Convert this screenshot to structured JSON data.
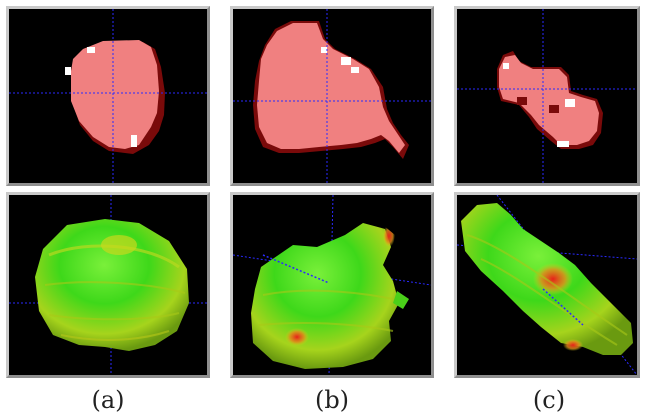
{
  "captions": [
    "(a)",
    "(b)",
    "(c)"
  ],
  "colors": {
    "background": "#000000",
    "slice_fill": "#f08080",
    "slice_edge": "#7a0a0a",
    "crosshair": "#2a2aff",
    "surface_green": "#3fdc1a",
    "surface_yellow": "#c8e21a",
    "surface_red": "#e8331a"
  }
}
